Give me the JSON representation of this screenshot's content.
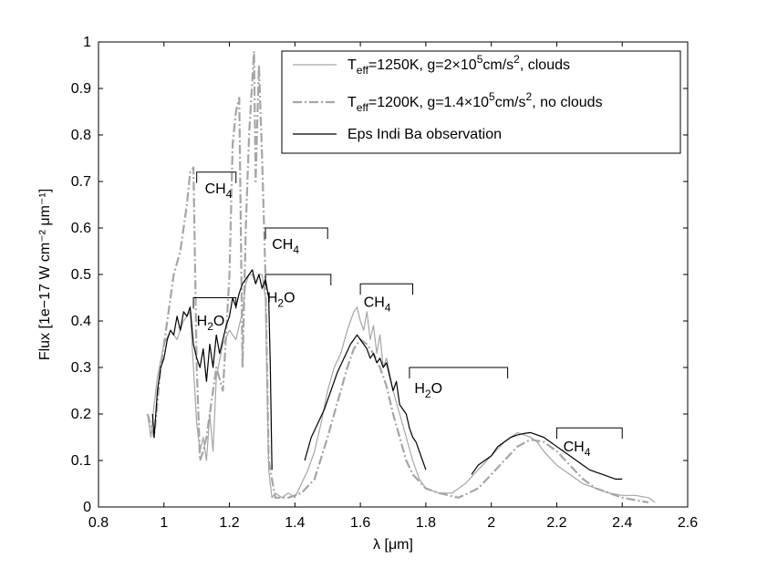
{
  "chart_data": {
    "type": "line",
    "xlabel": "λ [μm]",
    "ylabel": "Flux [1e−17 W cm⁻² μm⁻¹]",
    "xlim": [
      0.8,
      2.6
    ],
    "ylim": [
      0,
      1
    ],
    "x_ticks": [
      "0.8",
      "1",
      "1.2",
      "1.4",
      "1.6",
      "1.8",
      "2",
      "2.2",
      "2.4",
      "2.6"
    ],
    "y_ticks": [
      "0",
      "0.1",
      "0.2",
      "0.3",
      "0.4",
      "0.5",
      "0.6",
      "0.7",
      "0.8",
      "0.9",
      "1"
    ],
    "grid": false,
    "legend_position": "top-right",
    "colors": {
      "clouds": "#a6a6a6",
      "no_clouds": "#a6a6a6",
      "observation": "#000000"
    },
    "legend": [
      {
        "id": "clouds",
        "main": "T",
        "sub": "eff",
        "mid": "=1250K, g=2×10",
        "sup": "5",
        "unit": "cm/s",
        "unitsup": "2",
        "tail": ", clouds"
      },
      {
        "id": "no_clouds",
        "main": "T",
        "sub": "eff",
        "mid": "=1200K, g=1.4×10",
        "sup": "5",
        "unit": "cm/s",
        "unitsup": "2",
        "tail": ", no clouds"
      },
      {
        "id": "observation",
        "text": "Eps Indi Ba observation"
      }
    ],
    "series": [
      {
        "name": "Teff=1250K, g=2×10^5cm/s^2, clouds",
        "id": "clouds",
        "x": [
          0.95,
          0.96,
          0.97,
          0.98,
          1.0,
          1.02,
          1.04,
          1.06,
          1.08,
          1.09,
          1.1,
          1.11,
          1.12,
          1.13,
          1.14,
          1.15,
          1.16,
          1.18,
          1.2,
          1.22,
          1.24,
          1.25,
          1.26,
          1.27,
          1.28,
          1.29,
          1.3,
          1.31,
          1.32,
          1.33,
          1.34,
          1.36,
          1.38,
          1.4,
          1.42,
          1.44,
          1.46,
          1.48,
          1.5,
          1.52,
          1.54,
          1.56,
          1.58,
          1.59,
          1.6,
          1.61,
          1.62,
          1.63,
          1.64,
          1.65,
          1.66,
          1.67,
          1.68,
          1.7,
          1.72,
          1.74,
          1.76,
          1.78,
          1.8,
          1.84,
          1.88,
          1.92,
          1.96,
          2.0,
          2.04,
          2.08,
          2.1,
          2.12,
          2.14,
          2.16,
          2.2,
          2.24,
          2.28,
          2.32,
          2.36,
          2.4,
          2.44,
          2.48,
          2.5
        ],
        "y": [
          0.2,
          0.15,
          0.22,
          0.28,
          0.35,
          0.38,
          0.36,
          0.4,
          0.42,
          0.3,
          0.18,
          0.12,
          0.15,
          0.1,
          0.2,
          0.12,
          0.28,
          0.35,
          0.38,
          0.36,
          0.42,
          0.48,
          0.5,
          0.5,
          0.48,
          0.5,
          0.5,
          0.45,
          0.08,
          0.02,
          0.03,
          0.02,
          0.03,
          0.02,
          0.05,
          0.08,
          0.12,
          0.18,
          0.25,
          0.3,
          0.33,
          0.38,
          0.42,
          0.43,
          0.4,
          0.38,
          0.42,
          0.36,
          0.39,
          0.33,
          0.37,
          0.3,
          0.32,
          0.25,
          0.2,
          0.15,
          0.1,
          0.06,
          0.04,
          0.03,
          0.03,
          0.05,
          0.08,
          0.11,
          0.14,
          0.16,
          0.155,
          0.15,
          0.14,
          0.12,
          0.09,
          0.07,
          0.05,
          0.04,
          0.03,
          0.025,
          0.025,
          0.02,
          0.01
        ]
      },
      {
        "name": "Teff=1200K, g=1.4×10^5cm/s^2, no clouds",
        "id": "no_clouds",
        "x": [
          0.95,
          0.97,
          0.99,
          1.01,
          1.03,
          1.05,
          1.07,
          1.08,
          1.09,
          1.1,
          1.11,
          1.12,
          1.13,
          1.14,
          1.16,
          1.18,
          1.2,
          1.21,
          1.22,
          1.23,
          1.24,
          1.25,
          1.26,
          1.27,
          1.275,
          1.28,
          1.29,
          1.3,
          1.31,
          1.32,
          1.34,
          1.38,
          1.42,
          1.46,
          1.5,
          1.52,
          1.54,
          1.56,
          1.58,
          1.6,
          1.62,
          1.64,
          1.66,
          1.68,
          1.7,
          1.72,
          1.74,
          1.76,
          1.8,
          1.84,
          1.9,
          1.96,
          2.0,
          2.04,
          2.08,
          2.12,
          2.16,
          2.2,
          2.24,
          2.28,
          2.32,
          2.36,
          2.4,
          2.44,
          2.48
        ],
        "y": [
          0.2,
          0.15,
          0.3,
          0.4,
          0.5,
          0.55,
          0.65,
          0.72,
          0.73,
          0.3,
          0.1,
          0.12,
          0.15,
          0.2,
          0.3,
          0.25,
          0.5,
          0.78,
          0.85,
          0.88,
          0.3,
          0.6,
          0.8,
          0.92,
          0.98,
          0.7,
          0.95,
          0.75,
          0.5,
          0.1,
          0.02,
          0.02,
          0.03,
          0.06,
          0.15,
          0.2,
          0.25,
          0.3,
          0.34,
          0.36,
          0.35,
          0.33,
          0.3,
          0.26,
          0.2,
          0.15,
          0.1,
          0.07,
          0.04,
          0.03,
          0.02,
          0.04,
          0.07,
          0.1,
          0.13,
          0.145,
          0.14,
          0.12,
          0.09,
          0.06,
          0.04,
          0.03,
          0.02,
          0.015,
          0.01
        ]
      },
      {
        "name": "Eps Indi Ba observation",
        "id": "observation",
        "segments": [
          {
            "x": [
              0.965,
              0.97,
              0.98,
              0.99,
              1.0,
              1.01,
              1.02,
              1.03,
              1.04,
              1.05,
              1.06,
              1.07,
              1.08,
              1.09,
              1.1,
              1.11,
              1.12,
              1.13,
              1.14,
              1.15,
              1.16,
              1.17,
              1.18,
              1.19,
              1.2,
              1.21,
              1.22,
              1.23,
              1.24,
              1.25,
              1.26,
              1.27,
              1.28,
              1.29,
              1.3,
              1.31,
              1.32,
              1.325,
              1.33
            ],
            "y": [
              0.2,
              0.15,
              0.25,
              0.3,
              0.32,
              0.36,
              0.38,
              0.37,
              0.41,
              0.38,
              0.42,
              0.41,
              0.43,
              0.35,
              0.32,
              0.3,
              0.34,
              0.27,
              0.35,
              0.3,
              0.37,
              0.33,
              0.36,
              0.39,
              0.41,
              0.45,
              0.43,
              0.46,
              0.48,
              0.49,
              0.5,
              0.51,
              0.48,
              0.5,
              0.47,
              0.49,
              0.45,
              0.3,
              0.08
            ]
          },
          {
            "x": [
              1.43,
              1.45,
              1.47,
              1.49,
              1.51,
              1.53,
              1.55,
              1.57,
              1.59,
              1.6,
              1.61,
              1.62,
              1.63,
              1.64,
              1.65,
              1.66,
              1.67,
              1.68,
              1.69,
              1.7,
              1.71,
              1.72,
              1.73,
              1.74,
              1.75,
              1.76,
              1.77,
              1.78,
              1.79,
              1.8
            ],
            "y": [
              0.1,
              0.15,
              0.18,
              0.21,
              0.25,
              0.29,
              0.32,
              0.35,
              0.37,
              0.36,
              0.35,
              0.34,
              0.32,
              0.33,
              0.31,
              0.32,
              0.3,
              0.31,
              0.28,
              0.25,
              0.27,
              0.22,
              0.21,
              0.2,
              0.17,
              0.15,
              0.14,
              0.12,
              0.1,
              0.08
            ]
          },
          {
            "x": [
              1.94,
              1.96,
              1.98,
              2.0,
              2.02,
              2.04,
              2.06,
              2.08,
              2.1,
              2.12,
              2.14,
              2.16,
              2.18,
              2.2,
              2.22,
              2.24,
              2.26,
              2.28,
              2.3,
              2.32,
              2.34,
              2.36,
              2.38,
              2.4
            ],
            "y": [
              0.07,
              0.09,
              0.1,
              0.11,
              0.13,
              0.14,
              0.15,
              0.155,
              0.158,
              0.16,
              0.155,
              0.15,
              0.14,
              0.13,
              0.12,
              0.11,
              0.1,
              0.09,
              0.08,
              0.075,
              0.07,
              0.065,
              0.06,
              0.06
            ]
          }
        ]
      }
    ],
    "annotations": [
      {
        "base": "CH",
        "sub": "4",
        "x0": 1.1,
        "x1": 1.22,
        "y": 0.72,
        "tx": 1.125,
        "ty": 0.675
      },
      {
        "base": "CH",
        "sub": "4",
        "x0": 1.31,
        "x1": 1.5,
        "y": 0.6,
        "tx": 1.33,
        "ty": 0.555
      },
      {
        "base": "H",
        "sub": "2",
        "tail": "O",
        "x0": 1.31,
        "x1": 1.51,
        "y": 0.5,
        "tx": 1.315,
        "ty": 0.44
      },
      {
        "base": "H",
        "sub": "2",
        "tail": "O",
        "x0": 1.09,
        "x1": 1.22,
        "y": 0.45,
        "tx": 1.1,
        "ty": 0.39
      },
      {
        "base": "CH",
        "sub": "4",
        "x0": 1.6,
        "x1": 1.76,
        "y": 0.48,
        "tx": 1.61,
        "ty": 0.43
      },
      {
        "base": "H",
        "sub": "2",
        "tail": "O",
        "x0": 1.75,
        "x1": 2.05,
        "y": 0.3,
        "tx": 1.765,
        "ty": 0.245
      },
      {
        "base": "CH",
        "sub": "4",
        "x0": 2.2,
        "x1": 2.4,
        "y": 0.17,
        "tx": 2.22,
        "ty": 0.12
      }
    ]
  }
}
